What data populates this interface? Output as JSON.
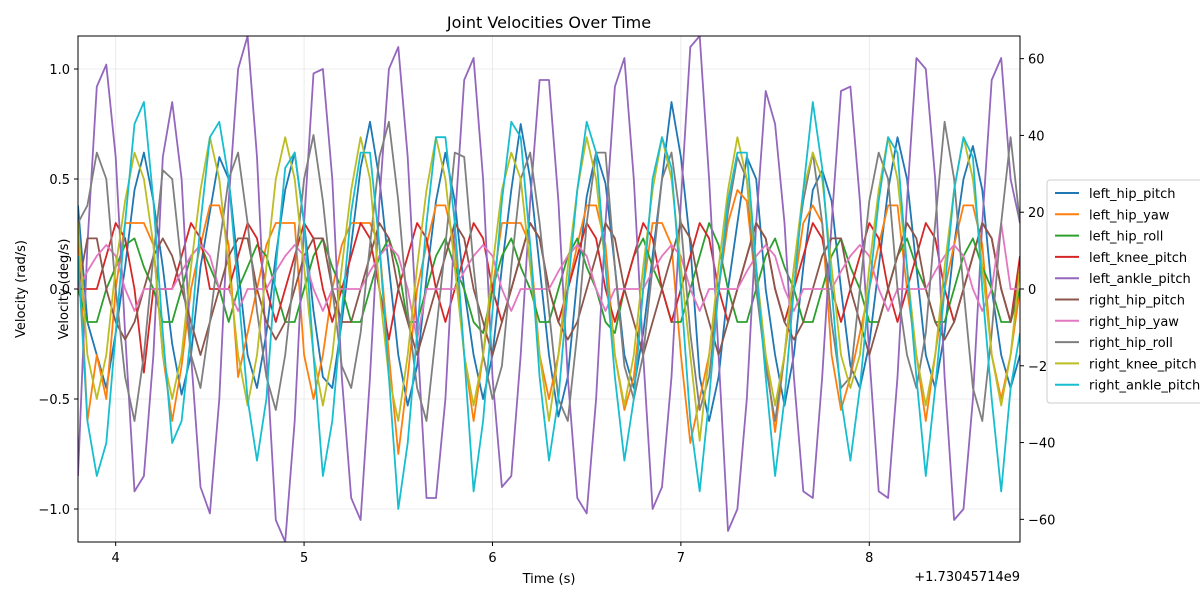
{
  "chart_data": {
    "type": "line",
    "title": "Joint Velocities Over Time",
    "xlabel": "Time (s)",
    "ylabel_left": "Velocity (rad/s)",
    "ylabel_right": "Velocity (deg/s)",
    "x_offset_label": "+1.73045714e9",
    "xlim": [
      3.8,
      8.8
    ],
    "ylim_left": [
      -1.15,
      1.15
    ],
    "ylim_right": [
      -65.9,
      65.9
    ],
    "x_ticks": [
      4,
      5,
      6,
      7,
      8
    ],
    "x_tick_labels": [
      "4",
      "5",
      "6",
      "7",
      "8"
    ],
    "y_ticks_left": [
      -1.0,
      -0.5,
      0.0,
      0.5,
      1.0
    ],
    "y_tick_labels_left": [
      "−1.0",
      "−0.5",
      "0.0",
      "0.5",
      "1.0"
    ],
    "y_ticks_right": [
      -60,
      -40,
      -20,
      0,
      20,
      40,
      60
    ],
    "y_tick_labels_right": [
      "−60",
      "−40",
      "−20",
      "0",
      "20",
      "40",
      "60"
    ],
    "grid": true,
    "legend_position": "right, outside",
    "x": [
      3.8,
      3.85,
      3.9,
      3.95,
      4.0,
      4.05,
      4.1,
      4.15,
      4.2,
      4.25,
      4.3,
      4.35,
      4.4,
      4.45,
      4.5,
      4.55,
      4.6,
      4.65,
      4.7,
      4.75,
      4.8,
      4.85,
      4.9,
      4.95,
      5.0,
      5.05,
      5.1,
      5.15,
      5.2,
      5.25,
      5.3,
      5.35,
      5.4,
      5.45,
      5.5,
      5.55,
      5.6,
      5.65,
      5.7,
      5.75,
      5.8,
      5.85,
      5.9,
      5.95,
      6.0,
      6.05,
      6.1,
      6.15,
      6.2,
      6.25,
      6.3,
      6.35,
      6.4,
      6.45,
      6.5,
      6.55,
      6.6,
      6.65,
      6.7,
      6.75,
      6.8,
      6.85,
      6.9,
      6.95,
      7.0,
      7.05,
      7.1,
      7.15,
      7.2,
      7.25,
      7.3,
      7.35,
      7.4,
      7.45,
      7.5,
      7.55,
      7.6,
      7.65,
      7.7,
      7.75,
      7.8,
      7.85,
      7.9,
      7.95,
      8.0,
      8.05,
      8.1,
      8.15,
      8.2,
      8.25,
      8.3,
      8.35,
      8.4,
      8.45,
      8.5,
      8.55,
      8.6,
      8.65,
      8.7,
      8.75,
      8.8
    ],
    "series": [
      {
        "name": "left_hip_pitch",
        "color": "#1f77b4",
        "values": [
          0.38,
          -0.15,
          -0.3,
          -0.45,
          -0.2,
          0.1,
          0.45,
          0.62,
          0.4,
          0.1,
          -0.25,
          -0.48,
          -0.3,
          0.1,
          0.35,
          0.6,
          0.5,
          0.1,
          -0.3,
          -0.45,
          -0.2,
          0.15,
          0.45,
          0.62,
          0.3,
          -0.1,
          -0.4,
          -0.45,
          -0.15,
          0.2,
          0.55,
          0.76,
          0.5,
          0.1,
          -0.3,
          -0.53,
          -0.35,
          0.05,
          0.4,
          0.62,
          0.4,
          0.0,
          -0.3,
          -0.5,
          -0.3,
          0.1,
          0.45,
          0.75,
          0.5,
          0.1,
          -0.3,
          -0.58,
          -0.4,
          0.05,
          0.42,
          0.62,
          0.48,
          0.1,
          -0.3,
          -0.45,
          -0.2,
          0.15,
          0.5,
          0.85,
          0.6,
          0.2,
          -0.4,
          -0.6,
          -0.4,
          0.0,
          0.3,
          0.6,
          0.5,
          0.0,
          -0.3,
          -0.53,
          -0.3,
          0.1,
          0.45,
          0.54,
          0.4,
          0.0,
          -0.35,
          -0.45,
          -0.25,
          0.1,
          0.45,
          0.69,
          0.5,
          0.1,
          -0.3,
          -0.45,
          -0.2,
          0.2,
          0.5,
          0.65,
          0.45,
          0.0,
          -0.3,
          -0.45,
          -0.3
        ]
      },
      {
        "name": "left_hip_yaw",
        "color": "#ff7f0e",
        "values": [
          0.3,
          -0.6,
          -0.3,
          -0.5,
          0.0,
          0.3,
          0.3,
          0.3,
          0.2,
          -0.3,
          -0.6,
          -0.35,
          0.0,
          0.2,
          0.38,
          0.38,
          0.2,
          -0.4,
          -0.2,
          0.0,
          0.2,
          0.3,
          0.3,
          0.3,
          -0.3,
          -0.5,
          -0.3,
          0.0,
          0.2,
          0.3,
          0.3,
          0.3,
          0.2,
          -0.3,
          -0.75,
          -0.4,
          0.0,
          0.2,
          0.38,
          0.38,
          0.2,
          -0.3,
          -0.6,
          -0.3,
          0.0,
          0.3,
          0.3,
          0.3,
          0.2,
          -0.3,
          -0.5,
          -0.3,
          0.0,
          0.2,
          0.38,
          0.38,
          0.2,
          -0.3,
          -0.55,
          -0.4,
          0.0,
          0.3,
          0.3,
          0.2,
          -0.3,
          -0.7,
          -0.5,
          -0.3,
          0.0,
          0.3,
          0.45,
          0.4,
          0.0,
          -0.3,
          -0.65,
          -0.3,
          0.0,
          0.3,
          0.38,
          0.3,
          -0.3,
          -0.55,
          -0.4,
          -0.2,
          0.0,
          0.2,
          0.38,
          0.38,
          0.0,
          -0.3,
          -0.6,
          -0.3,
          0.0,
          0.2,
          0.38,
          0.38,
          0.2,
          -0.3,
          -0.5,
          -0.3,
          0.0
        ]
      },
      {
        "name": "left_hip_roll",
        "color": "#2ca02c",
        "values": [
          0.0,
          -0.15,
          -0.15,
          0.0,
          0.1,
          0.2,
          0.23,
          0.1,
          0.0,
          -0.15,
          -0.15,
          0.0,
          0.15,
          0.2,
          0.1,
          0.0,
          -0.15,
          0.0,
          0.1,
          0.2,
          0.15,
          0.0,
          -0.15,
          -0.15,
          0.0,
          0.15,
          0.23,
          0.1,
          0.0,
          -0.15,
          -0.15,
          0.0,
          0.15,
          0.23,
          0.1,
          -0.15,
          -0.15,
          0.0,
          0.15,
          0.23,
          0.1,
          0.0,
          -0.15,
          -0.2,
          0.0,
          0.15,
          0.23,
          0.1,
          0.0,
          -0.15,
          -0.15,
          0.0,
          0.15,
          0.23,
          0.1,
          0.0,
          -0.15,
          -0.2,
          0.0,
          0.15,
          0.23,
          0.1,
          0.0,
          -0.15,
          -0.15,
          0.0,
          0.15,
          0.3,
          0.2,
          0.0,
          -0.15,
          -0.15,
          0.0,
          0.15,
          0.23,
          0.1,
          0.0,
          -0.15,
          -0.15,
          0.0,
          0.15,
          0.23,
          0.1,
          0.0,
          -0.15,
          -0.15,
          0.0,
          0.15,
          0.23,
          0.1,
          0.0,
          -0.15,
          -0.15,
          0.0,
          0.15,
          0.23,
          0.1,
          0.0,
          -0.15,
          -0.15,
          0.0
        ]
      },
      {
        "name": "left_knee_pitch",
        "color": "#d62728",
        "values": [
          0.0,
          0.0,
          0.0,
          0.15,
          0.3,
          0.23,
          0.0,
          -0.38,
          0.0,
          0.0,
          0.0,
          0.15,
          0.3,
          0.23,
          0.0,
          0.0,
          0.0,
          0.15,
          0.3,
          0.23,
          0.0,
          -0.15,
          0.0,
          0.15,
          0.3,
          0.23,
          0.0,
          -0.15,
          0.0,
          0.15,
          0.3,
          0.23,
          0.0,
          -0.23,
          0.0,
          0.15,
          0.3,
          0.23,
          0.0,
          -0.15,
          0.0,
          0.15,
          0.3,
          0.23,
          0.0,
          -0.15,
          0.0,
          0.15,
          0.3,
          0.23,
          0.0,
          -0.15,
          0.0,
          0.15,
          0.3,
          0.23,
          0.0,
          -0.15,
          0.0,
          0.15,
          0.3,
          0.23,
          0.0,
          -0.15,
          0.0,
          0.15,
          0.3,
          0.23,
          0.0,
          -0.15,
          0.0,
          0.15,
          0.3,
          0.23,
          0.0,
          -0.15,
          0.0,
          0.15,
          0.3,
          0.23,
          0.0,
          -0.15,
          0.0,
          0.15,
          0.3,
          0.23,
          0.0,
          -0.15,
          0.0,
          0.15,
          0.3,
          0.23,
          0.0,
          -0.15,
          0.0,
          0.15,
          0.3,
          0.23,
          0.0,
          -0.15,
          0.15
        ]
      },
      {
        "name": "left_ankle_pitch",
        "color": "#9467bd",
        "values": [
          -0.85,
          0.2,
          0.92,
          1.02,
          0.6,
          -0.2,
          -0.92,
          -0.85,
          -0.3,
          0.6,
          0.85,
          0.5,
          -0.3,
          -0.9,
          -1.02,
          -0.5,
          0.4,
          1.0,
          1.15,
          0.6,
          -0.3,
          -1.05,
          -1.15,
          -0.6,
          0.3,
          0.98,
          1.0,
          0.5,
          -0.4,
          -0.95,
          -1.05,
          -0.4,
          0.4,
          1.0,
          1.1,
          0.6,
          -0.2,
          -0.95,
          -0.95,
          -0.5,
          0.3,
          0.95,
          1.05,
          0.5,
          -0.4,
          -0.9,
          -0.85,
          -0.3,
          0.4,
          0.95,
          0.95,
          0.4,
          -0.4,
          -0.95,
          -1.02,
          -0.5,
          0.3,
          0.92,
          1.05,
          0.5,
          -0.3,
          -1.0,
          -0.9,
          -0.4,
          0.4,
          1.1,
          1.15,
          0.5,
          -0.3,
          -1.1,
          -1.0,
          -0.5,
          0.3,
          0.9,
          0.75,
          0.3,
          -0.4,
          -0.92,
          -0.95,
          -0.4,
          0.3,
          0.9,
          0.92,
          0.4,
          -0.3,
          -0.92,
          -0.95,
          -0.4,
          0.4,
          1.05,
          1.0,
          0.5,
          -0.4,
          -1.05,
          -1.0,
          -0.5,
          0.3,
          0.95,
          1.05,
          0.5,
          0.3
        ]
      },
      {
        "name": "right_hip_pitch",
        "color": "#8c564b",
        "values": [
          0.0,
          0.23,
          0.23,
          0.0,
          -0.15,
          -0.23,
          -0.15,
          0.0,
          0.15,
          0.23,
          0.15,
          0.0,
          -0.15,
          -0.3,
          -0.15,
          0.0,
          0.15,
          0.23,
          0.23,
          0.0,
          -0.15,
          -0.23,
          -0.15,
          0.0,
          0.15,
          0.23,
          0.23,
          0.0,
          -0.15,
          -0.15,
          0.0,
          0.15,
          0.3,
          0.23,
          0.0,
          -0.15,
          -0.3,
          -0.15,
          0.0,
          0.15,
          0.3,
          0.23,
          0.0,
          -0.15,
          -0.3,
          -0.15,
          0.0,
          0.15,
          0.3,
          0.23,
          0.0,
          -0.15,
          -0.23,
          -0.15,
          0.0,
          0.15,
          0.3,
          0.23,
          0.0,
          -0.15,
          -0.3,
          -0.15,
          0.0,
          0.15,
          0.3,
          0.23,
          0.0,
          -0.15,
          -0.3,
          -0.15,
          0.0,
          0.15,
          0.3,
          0.23,
          0.0,
          -0.15,
          -0.23,
          -0.15,
          0.0,
          0.15,
          0.23,
          0.23,
          0.0,
          -0.15,
          -0.3,
          -0.15,
          0.0,
          0.15,
          0.3,
          0.23,
          0.0,
          -0.15,
          -0.23,
          -0.15,
          0.0,
          0.15,
          0.3,
          0.23,
          0.0,
          -0.15,
          0.08
        ]
      },
      {
        "name": "right_hip_yaw",
        "color": "#e377c2",
        "values": [
          0.0,
          0.08,
          0.15,
          0.2,
          0.15,
          0.0,
          -0.1,
          0.0,
          0.0,
          0.0,
          0.0,
          0.08,
          0.15,
          0.2,
          0.15,
          0.0,
          0.0,
          -0.1,
          0.0,
          0.0,
          0.0,
          0.08,
          0.15,
          0.2,
          0.15,
          0.0,
          -0.1,
          0.0,
          0.0,
          0.0,
          0.0,
          0.08,
          0.15,
          0.2,
          0.15,
          0.0,
          -0.23,
          0.0,
          0.0,
          0.0,
          0.0,
          0.08,
          0.15,
          0.2,
          0.15,
          0.0,
          -0.1,
          0.0,
          0.0,
          0.0,
          0.0,
          0.08,
          0.15,
          0.2,
          0.15,
          0.0,
          -0.1,
          0.0,
          0.0,
          0.0,
          0.0,
          0.08,
          0.15,
          0.2,
          0.15,
          0.0,
          -0.1,
          0.0,
          0.0,
          0.0,
          0.0,
          0.08,
          0.15,
          0.2,
          0.15,
          0.0,
          -0.1,
          0.0,
          0.0,
          0.0,
          0.0,
          0.08,
          0.15,
          0.2,
          0.15,
          0.0,
          -0.1,
          0.0,
          0.0,
          0.0,
          0.0,
          0.08,
          0.15,
          0.2,
          0.15,
          0.0,
          -0.1,
          0.0,
          0.3,
          0.0,
          0.0
        ]
      },
      {
        "name": "right_hip_roll",
        "color": "#7f7f7f",
        "values": [
          0.3,
          0.38,
          0.62,
          0.5,
          0.0,
          -0.4,
          -0.6,
          -0.3,
          0.15,
          0.54,
          0.5,
          0.1,
          -0.3,
          -0.45,
          -0.15,
          0.2,
          0.5,
          0.62,
          0.3,
          -0.1,
          -0.4,
          -0.55,
          -0.3,
          0.1,
          0.5,
          0.7,
          0.4,
          0.0,
          -0.35,
          -0.45,
          -0.2,
          0.2,
          0.6,
          0.76,
          0.4,
          -0.1,
          -0.45,
          -0.6,
          -0.2,
          0.2,
          0.62,
          0.6,
          0.1,
          -0.3,
          -0.5,
          -0.35,
          0.1,
          0.5,
          0.62,
          0.3,
          -0.1,
          -0.5,
          -0.6,
          -0.2,
          0.3,
          0.62,
          0.62,
          0.1,
          -0.35,
          -0.5,
          -0.3,
          0.1,
          0.5,
          0.62,
          0.3,
          -0.2,
          -0.55,
          -0.4,
          0.0,
          0.35,
          0.6,
          0.5,
          0.0,
          -0.35,
          -0.6,
          -0.3,
          0.1,
          0.4,
          0.62,
          0.3,
          -0.15,
          -0.45,
          -0.4,
          0.0,
          0.4,
          0.62,
          0.5,
          0.0,
          -0.3,
          -0.45,
          -0.2,
          0.3,
          0.76,
          0.5,
          0.0,
          -0.45,
          -0.6,
          -0.2,
          0.3,
          0.69,
          0.3
        ]
      },
      {
        "name": "right_knee_pitch",
        "color": "#bcbd22",
        "values": [
          0.3,
          -0.3,
          -0.5,
          -0.3,
          0.1,
          0.4,
          0.62,
          0.5,
          0.2,
          -0.3,
          -0.5,
          -0.3,
          0.1,
          0.45,
          0.69,
          0.5,
          0.1,
          -0.3,
          -0.53,
          -0.3,
          0.1,
          0.5,
          0.69,
          0.5,
          0.1,
          -0.3,
          -0.53,
          -0.3,
          0.1,
          0.45,
          0.69,
          0.5,
          0.0,
          -0.4,
          -0.6,
          -0.3,
          0.1,
          0.45,
          0.69,
          0.5,
          0.1,
          -0.3,
          -0.53,
          -0.3,
          0.1,
          0.45,
          0.62,
          0.5,
          0.1,
          -0.3,
          -0.6,
          -0.3,
          0.1,
          0.45,
          0.69,
          0.5,
          0.1,
          -0.3,
          -0.53,
          -0.3,
          0.1,
          0.45,
          0.69,
          0.5,
          0.1,
          -0.3,
          -0.69,
          -0.3,
          0.1,
          0.45,
          0.69,
          0.5,
          0.1,
          -0.3,
          -0.53,
          -0.3,
          0.1,
          0.45,
          0.62,
          0.5,
          0.1,
          -0.3,
          -0.45,
          -0.3,
          0.1,
          0.45,
          0.69,
          0.5,
          0.1,
          -0.3,
          -0.53,
          -0.3,
          0.1,
          0.45,
          0.69,
          0.5,
          0.1,
          -0.3,
          -0.53,
          -0.3,
          0.1
        ]
      },
      {
        "name": "right_ankle_pitch",
        "color": "#17becf",
        "values": [
          0.15,
          -0.6,
          -0.85,
          -0.7,
          -0.2,
          0.3,
          0.75,
          0.85,
          0.4,
          -0.2,
          -0.7,
          -0.6,
          -0.2,
          0.3,
          0.69,
          0.76,
          0.5,
          0.0,
          -0.5,
          -0.78,
          -0.5,
          0.1,
          0.55,
          0.62,
          0.3,
          -0.3,
          -0.85,
          -0.6,
          -0.1,
          0.35,
          0.62,
          0.62,
          0.2,
          -0.4,
          -1.0,
          -0.7,
          -0.2,
          0.3,
          0.69,
          0.69,
          0.3,
          -0.3,
          -0.92,
          -0.6,
          -0.1,
          0.4,
          0.76,
          0.69,
          0.2,
          -0.4,
          -0.78,
          -0.5,
          0.0,
          0.45,
          0.76,
          0.62,
          0.1,
          -0.4,
          -0.78,
          -0.5,
          0.0,
          0.5,
          0.69,
          0.55,
          0.0,
          -0.6,
          -0.92,
          -0.5,
          0.0,
          0.4,
          0.62,
          0.62,
          0.1,
          -0.4,
          -0.85,
          -0.5,
          0.0,
          0.45,
          0.85,
          0.55,
          0.0,
          -0.5,
          -0.78,
          -0.45,
          0.0,
          0.4,
          0.69,
          0.62,
          0.1,
          -0.4,
          -0.85,
          -0.45,
          0.0,
          0.45,
          0.69,
          0.6,
          0.0,
          -0.5,
          -0.92,
          -0.45,
          -0.2
        ]
      }
    ]
  }
}
